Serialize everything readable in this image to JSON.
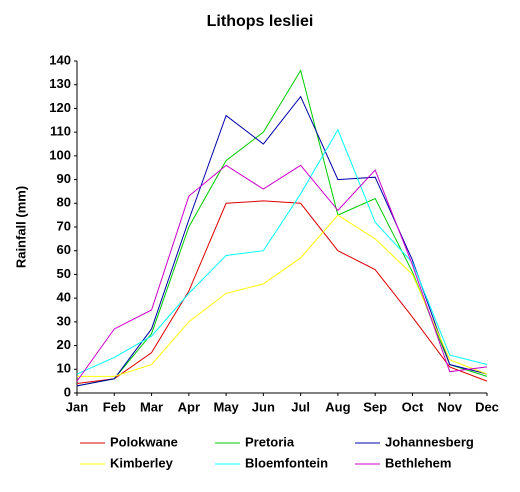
{
  "chart_data": {
    "type": "line",
    "title": "Lithops lesliei",
    "y_label": "Rainfall (mm)",
    "categories": [
      "Jan",
      "Feb",
      "Mar",
      "Apr",
      "May",
      "Jun",
      "Jul",
      "Aug",
      "Sep",
      "Oct",
      "Nov",
      "Dec"
    ],
    "series": [
      {
        "name": "Polokwane",
        "color": "#dd0000",
        "values": [
          4,
          6,
          17,
          43,
          80,
          81,
          80,
          60,
          52,
          32,
          11,
          5
        ]
      },
      {
        "name": "Pretoria",
        "color": "#00cc00",
        "values": [
          3,
          6,
          25,
          70,
          98,
          110,
          136,
          75,
          82,
          51,
          12,
          7
        ]
      },
      {
        "name": "Johannesberg",
        "color": "#0000aa",
        "values": [
          3,
          6,
          27,
          73,
          117,
          105,
          125,
          90,
          91,
          56,
          12,
          8
        ]
      },
      {
        "name": "Kimberley",
        "color": "#ffff00",
        "values": [
          7,
          7,
          12,
          30,
          42,
          46,
          57,
          75,
          65,
          50,
          14,
          8
        ]
      },
      {
        "name": "Bloemfontein",
        "color": "#00ffff",
        "values": [
          8,
          15,
          24,
          42,
          58,
          60,
          84,
          111,
          72,
          55,
          16,
          12
        ]
      },
      {
        "name": "Bethlehem",
        "color": "#cc00cc",
        "values": [
          5,
          27,
          35,
          83,
          96,
          86,
          96,
          77,
          94,
          54,
          9,
          11
        ]
      }
    ],
    "ylim": [
      0,
      140
    ],
    "yticks": [
      0,
      10,
      20,
      30,
      40,
      50,
      60,
      70,
      80,
      90,
      100,
      110,
      120,
      130,
      140
    ],
    "grid": false
  }
}
